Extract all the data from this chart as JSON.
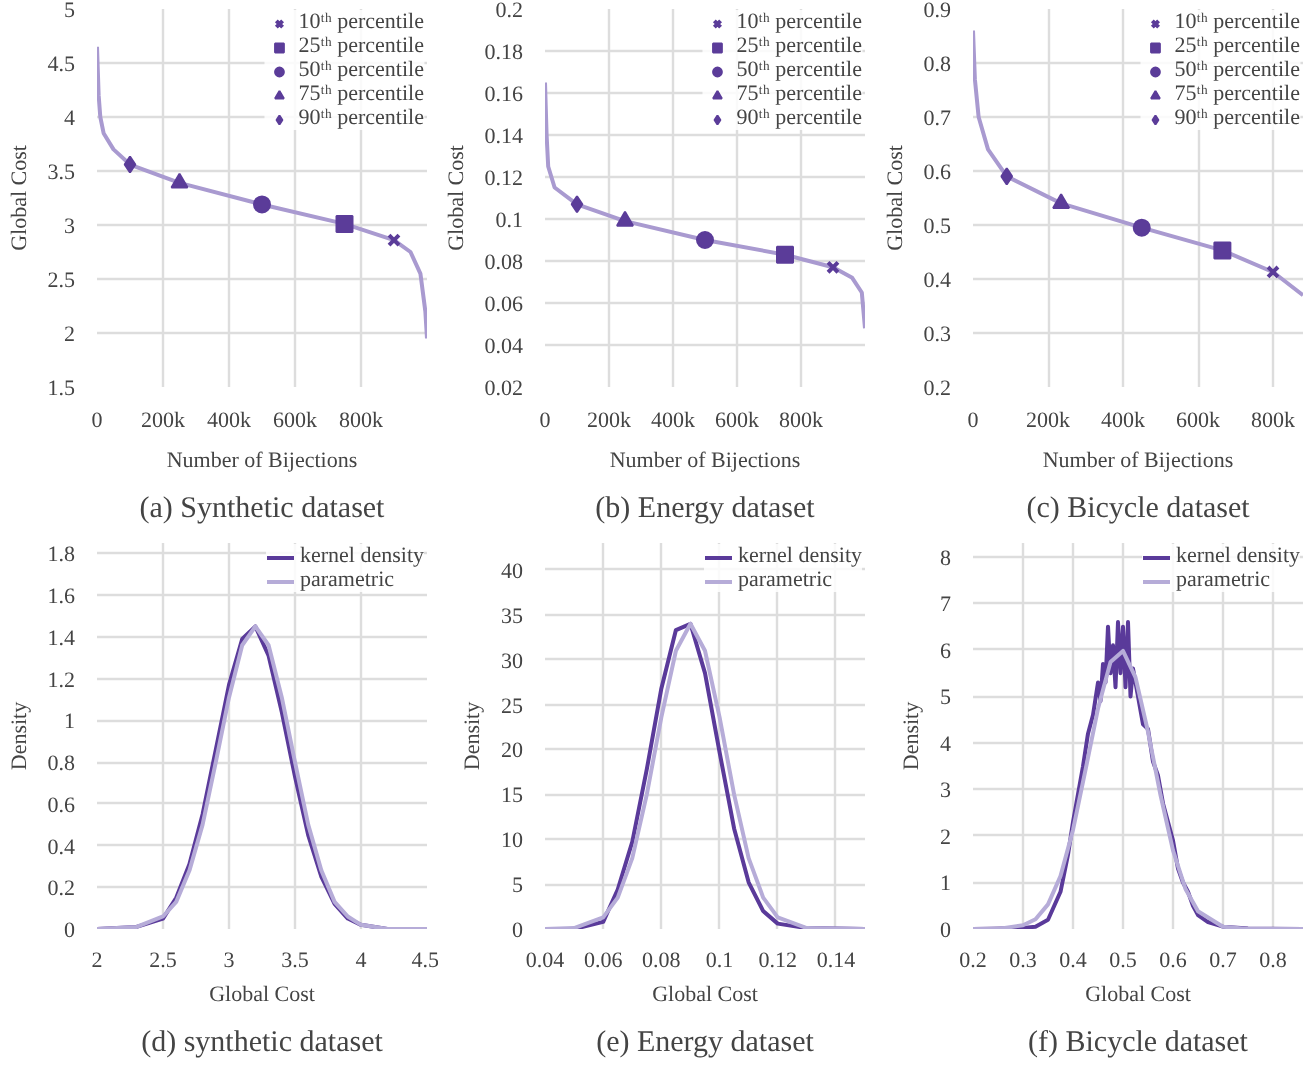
{
  "chart_data": [
    {
      "type": "line",
      "title": "(a) Synthetic dataset",
      "xlabel": "Number of Bijections",
      "ylabel": "Global Cost",
      "xlim": [
        0,
        1000000
      ],
      "ylim": [
        1.5,
        5
      ],
      "xticks": [
        0,
        {
          "value": 200000,
          "label": "200k"
        },
        {
          "value": 400000,
          "label": "400k"
        },
        {
          "value": 600000,
          "label": "600k"
        },
        {
          "value": 800000,
          "label": "800k"
        }
      ],
      "yticks": [
        1.5,
        2,
        2.5,
        3,
        3.5,
        4,
        4.5,
        5
      ],
      "grid": true,
      "legend": "top right",
      "series": [
        {
          "type": "line",
          "color": "#a99ad0",
          "x": [
            0,
            5000,
            10000,
            20000,
            50000,
            100000,
            250000,
            500000,
            750000,
            900000,
            950000,
            980000,
            995000,
            1000000
          ],
          "values": [
            4.65,
            4.2,
            4.0,
            3.85,
            3.7,
            3.56,
            3.39,
            3.19,
            3.01,
            2.86,
            2.75,
            2.55,
            2.2,
            1.95
          ]
        },
        {
          "type": "scatter",
          "name": "10ᵗʰ percentile",
          "marker": "cross",
          "color": "#5b3c99",
          "x": [
            900000
          ],
          "values": [
            2.86
          ]
        },
        {
          "type": "scatter",
          "name": "25ᵗʰ percentile",
          "marker": "square",
          "color": "#5b3c99",
          "x": [
            750000
          ],
          "values": [
            3.01
          ]
        },
        {
          "type": "scatter",
          "name": "50ᵗʰ percentile",
          "marker": "circle",
          "color": "#5b3c99",
          "x": [
            500000
          ],
          "values": [
            3.19
          ]
        },
        {
          "type": "scatter",
          "name": "75ᵗʰ percentile",
          "marker": "triangle",
          "color": "#5b3c99",
          "x": [
            250000
          ],
          "values": [
            3.39
          ]
        },
        {
          "type": "scatter",
          "name": "90ᵗʰ percentile",
          "marker": "diamond",
          "color": "#5b3c99",
          "x": [
            100000
          ],
          "values": [
            3.56
          ]
        }
      ]
    },
    {
      "type": "line",
      "title": "(b) Energy dataset",
      "xlabel": "Number of Bijections",
      "ylabel": "Global Cost",
      "xlim": [
        0,
        1000000
      ],
      "ylim": [
        0.02,
        0.2
      ],
      "xticks": [
        0,
        {
          "value": 200000,
          "label": "200k"
        },
        {
          "value": 400000,
          "label": "400k"
        },
        {
          "value": 600000,
          "label": "600k"
        },
        {
          "value": 800000,
          "label": "800k"
        }
      ],
      "yticks": [
        0.02,
        0.04,
        0.06,
        0.08,
        0.1,
        0.12,
        0.14,
        0.16,
        0.18,
        0.2
      ],
      "grid": true,
      "legend": "top right",
      "series": [
        {
          "type": "line",
          "color": "#a99ad0",
          "x": [
            0,
            5000,
            10000,
            30000,
            100000,
            250000,
            500000,
            750000,
            900000,
            960000,
            990000,
            1000000
          ],
          "values": [
            0.165,
            0.14,
            0.125,
            0.115,
            0.107,
            0.099,
            0.09,
            0.083,
            0.077,
            0.072,
            0.065,
            0.048
          ]
        },
        {
          "type": "scatter",
          "name": "10ᵗʰ percentile",
          "marker": "cross",
          "color": "#5b3c99",
          "x": [
            900000
          ],
          "values": [
            0.077
          ]
        },
        {
          "type": "scatter",
          "name": "25ᵗʰ percentile",
          "marker": "square",
          "color": "#5b3c99",
          "x": [
            750000
          ],
          "values": [
            0.083
          ]
        },
        {
          "type": "scatter",
          "name": "50ᵗʰ percentile",
          "marker": "circle",
          "color": "#5b3c99",
          "x": [
            500000
          ],
          "values": [
            0.09
          ]
        },
        {
          "type": "scatter",
          "name": "75ᵗʰ percentile",
          "marker": "triangle",
          "color": "#5b3c99",
          "x": [
            250000
          ],
          "values": [
            0.099
          ]
        },
        {
          "type": "scatter",
          "name": "90ᵗʰ percentile",
          "marker": "diamond",
          "color": "#5b3c99",
          "x": [
            100000
          ],
          "values": [
            0.107
          ]
        }
      ]
    },
    {
      "type": "line",
      "title": "(c) Bicycle dataset",
      "xlabel": "Number of Bijections",
      "ylabel": "Global Cost",
      "xlim": [
        0,
        880000
      ],
      "ylim": [
        0.2,
        0.9
      ],
      "xticks": [
        0,
        {
          "value": 200000,
          "label": "200k"
        },
        {
          "value": 400000,
          "label": "400k"
        },
        {
          "value": 600000,
          "label": "600k"
        },
        {
          "value": 800000,
          "label": "800k"
        }
      ],
      "yticks": [
        0.2,
        0.3,
        0.4,
        0.5,
        0.6,
        0.7,
        0.8,
        0.9
      ],
      "grid": true,
      "legend": "top right",
      "series": [
        {
          "type": "line",
          "color": "#a99ad0",
          "x": [
            0,
            5000,
            15000,
            40000,
            90000,
            235000,
            450000,
            665000,
            800000,
            880000
          ],
          "values": [
            0.86,
            0.77,
            0.7,
            0.64,
            0.59,
            0.54,
            0.495,
            0.453,
            0.413,
            0.37
          ]
        },
        {
          "type": "scatter",
          "name": "10ᵗʰ percentile",
          "marker": "cross",
          "color": "#5b3c99",
          "x": [
            800000
          ],
          "values": [
            0.413
          ]
        },
        {
          "type": "scatter",
          "name": "25ᵗʰ percentile",
          "marker": "square",
          "color": "#5b3c99",
          "x": [
            665000
          ],
          "values": [
            0.453
          ]
        },
        {
          "type": "scatter",
          "name": "50ᵗʰ percentile",
          "marker": "circle",
          "color": "#5b3c99",
          "x": [
            450000
          ],
          "values": [
            0.495
          ]
        },
        {
          "type": "scatter",
          "name": "75ᵗʰ percentile",
          "marker": "triangle",
          "color": "#5b3c99",
          "x": [
            235000
          ],
          "values": [
            0.54
          ]
        },
        {
          "type": "scatter",
          "name": "90ᵗʰ percentile",
          "marker": "diamond",
          "color": "#5b3c99",
          "x": [
            90000
          ],
          "values": [
            0.59
          ]
        }
      ]
    },
    {
      "type": "line",
      "title": "(d) synthetic dataset",
      "xlabel": "Global Cost",
      "ylabel": "Density",
      "xlim": [
        2,
        4.5
      ],
      "ylim": [
        0,
        1.85
      ],
      "xticks": [
        2,
        2.5,
        3,
        3.5,
        4,
        4.5
      ],
      "yticks": [
        0,
        0.2,
        0.4,
        0.6,
        0.8,
        1,
        1.2,
        1.4,
        1.6,
        1.8
      ],
      "grid": true,
      "legend": "top right",
      "series": [
        {
          "name": "kernel density",
          "color": "#5a3a9a",
          "x": [
            2,
            2.3,
            2.5,
            2.6,
            2.7,
            2.8,
            2.9,
            3.0,
            3.1,
            3.2,
            3.3,
            3.4,
            3.5,
            3.6,
            3.7,
            3.8,
            3.9,
            4.0,
            4.2,
            4.5
          ],
          "values": [
            0,
            0.01,
            0.05,
            0.15,
            0.31,
            0.55,
            0.86,
            1.17,
            1.39,
            1.45,
            1.31,
            1.04,
            0.73,
            0.45,
            0.25,
            0.12,
            0.05,
            0.02,
            0,
            0
          ]
        },
        {
          "name": "parametric",
          "color": "#b6acd8",
          "x": [
            2,
            2.3,
            2.5,
            2.6,
            2.7,
            2.8,
            2.9,
            3.0,
            3.1,
            3.2,
            3.3,
            3.4,
            3.5,
            3.6,
            3.7,
            3.8,
            3.9,
            4.0,
            4.2,
            4.5
          ],
          "values": [
            0,
            0.01,
            0.06,
            0.13,
            0.28,
            0.5,
            0.8,
            1.11,
            1.36,
            1.45,
            1.36,
            1.11,
            0.8,
            0.5,
            0.28,
            0.13,
            0.06,
            0.02,
            0,
            0
          ]
        }
      ]
    },
    {
      "type": "line",
      "title": "(e) Energy dataset",
      "xlabel": "Global Cost",
      "ylabel": "Density",
      "xlim": [
        0.04,
        0.15
      ],
      "ylim": [
        0,
        43
      ],
      "xticks": [
        0.04,
        0.06,
        0.08,
        0.1,
        0.12,
        0.14
      ],
      "yticks": [
        0,
        5,
        10,
        15,
        20,
        25,
        30,
        35,
        40
      ],
      "grid": true,
      "legend": "top right",
      "series": [
        {
          "name": "kernel density",
          "color": "#5a3a9a",
          "x": [
            0.04,
            0.05,
            0.06,
            0.065,
            0.07,
            0.075,
            0.08,
            0.085,
            0.09,
            0.095,
            0.1,
            0.105,
            0.11,
            0.115,
            0.12,
            0.13,
            0.15
          ],
          "values": [
            0,
            0,
            0.8,
            4.4,
            9.7,
            17.8,
            26.8,
            33.3,
            34,
            28.5,
            19.7,
            11.2,
            5.2,
            2,
            0.6,
            0.1,
            0
          ]
        },
        {
          "name": "parametric",
          "color": "#b6acd8",
          "x": [
            0.04,
            0.05,
            0.06,
            0.065,
            0.07,
            0.075,
            0.08,
            0.085,
            0.09,
            0.095,
            0.1,
            0.105,
            0.11,
            0.115,
            0.12,
            0.13,
            0.15
          ],
          "values": [
            0,
            0.1,
            1.3,
            3.5,
            7.9,
            15,
            23.6,
            31,
            34,
            31,
            23.6,
            15,
            7.9,
            3.5,
            1.3,
            0.1,
            0
          ]
        }
      ]
    },
    {
      "type": "line",
      "title": "(f) Bicycle dataset",
      "xlabel": "Global Cost",
      "ylabel": "Density",
      "xlim": [
        0.2,
        0.86
      ],
      "ylim": [
        0,
        8.3
      ],
      "xticks": [
        0.2,
        0.3,
        0.4,
        0.5,
        0.6,
        0.7,
        0.8
      ],
      "yticks": [
        0,
        1,
        2,
        3,
        4,
        5,
        6,
        7,
        8
      ],
      "grid": true,
      "legend": "top right",
      "series": [
        {
          "name": "kernel density",
          "color": "#5a3a9a",
          "x": [
            0.2,
            0.3,
            0.325,
            0.35,
            0.375,
            0.39,
            0.4,
            0.41,
            0.42,
            0.43,
            0.44,
            0.45,
            0.455,
            0.46,
            0.465,
            0.47,
            0.475,
            0.48,
            0.485,
            0.49,
            0.495,
            0.5,
            0.505,
            0.51,
            0.515,
            0.52,
            0.53,
            0.54,
            0.55,
            0.56,
            0.57,
            0.58,
            0.59,
            0.6,
            0.61,
            0.62,
            0.63,
            0.64,
            0.65,
            0.67,
            0.7,
            0.75,
            0.86
          ],
          "values": [
            0,
            0.02,
            0.05,
            0.2,
            0.8,
            1.6,
            2.3,
            2.9,
            3.5,
            4.2,
            4.6,
            5.3,
            4.9,
            5.7,
            5.3,
            6.5,
            5.5,
            6.1,
            5.2,
            6.6,
            5.5,
            6.5,
            5.2,
            6.6,
            5.0,
            5.6,
            5.0,
            4.4,
            4.3,
            3.6,
            3.3,
            2.7,
            2.3,
            1.9,
            1.3,
            1.0,
            0.8,
            0.5,
            0.3,
            0.15,
            0.05,
            0.01,
            0
          ]
        },
        {
          "name": "parametric",
          "color": "#b6acd8",
          "x": [
            0.2,
            0.25,
            0.3,
            0.325,
            0.35,
            0.375,
            0.4,
            0.425,
            0.45,
            0.475,
            0.5,
            0.525,
            0.55,
            0.575,
            0.6,
            0.625,
            0.65,
            0.7,
            0.75,
            0.86
          ],
          "values": [
            0,
            0,
            0.08,
            0.21,
            0.53,
            1.14,
            2.13,
            3.42,
            4.74,
            5.74,
            5.98,
            5.41,
            4.24,
            2.88,
            1.69,
            0.86,
            0.38,
            0.05,
            0,
            0
          ]
        }
      ]
    }
  ]
}
